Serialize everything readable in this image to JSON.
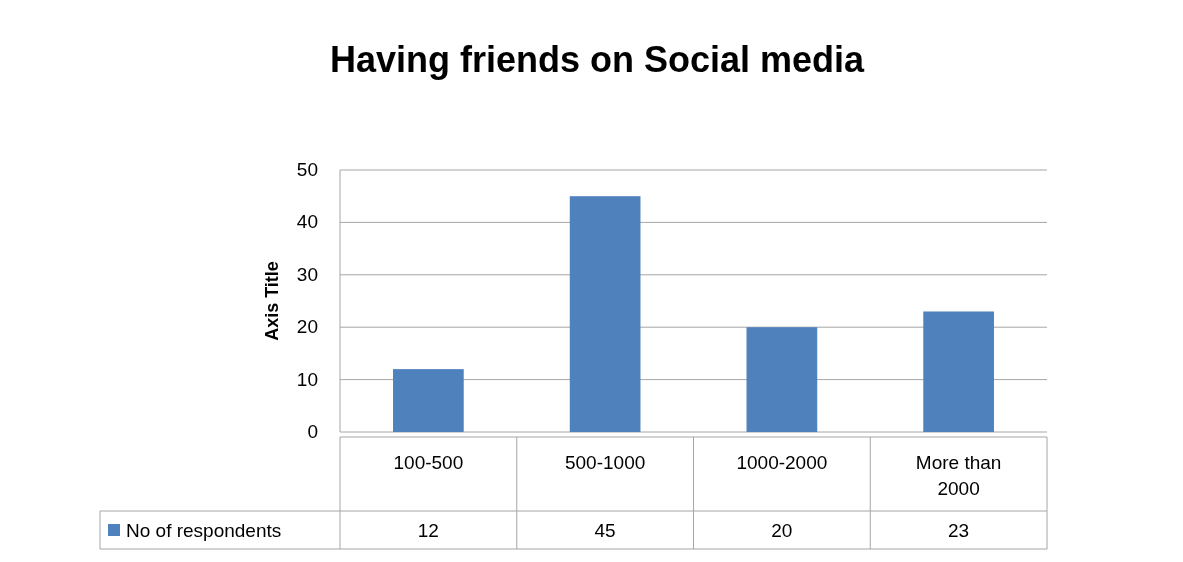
{
  "chart_data": {
    "type": "bar",
    "title": "Having friends on Social media",
    "ylabel": "Axis Title",
    "categories": [
      "100-500",
      "500-1000",
      "1000-2000",
      "More than 2000"
    ],
    "series": [
      {
        "name": "No of respondents",
        "color": "#4f81bd",
        "values": [
          12,
          45,
          20,
          23
        ]
      }
    ],
    "ylim": [
      0,
      50
    ],
    "yticks": [
      0,
      10,
      20,
      30,
      40,
      50
    ],
    "grid": "y",
    "legend": "bottom",
    "data_labels": true
  }
}
